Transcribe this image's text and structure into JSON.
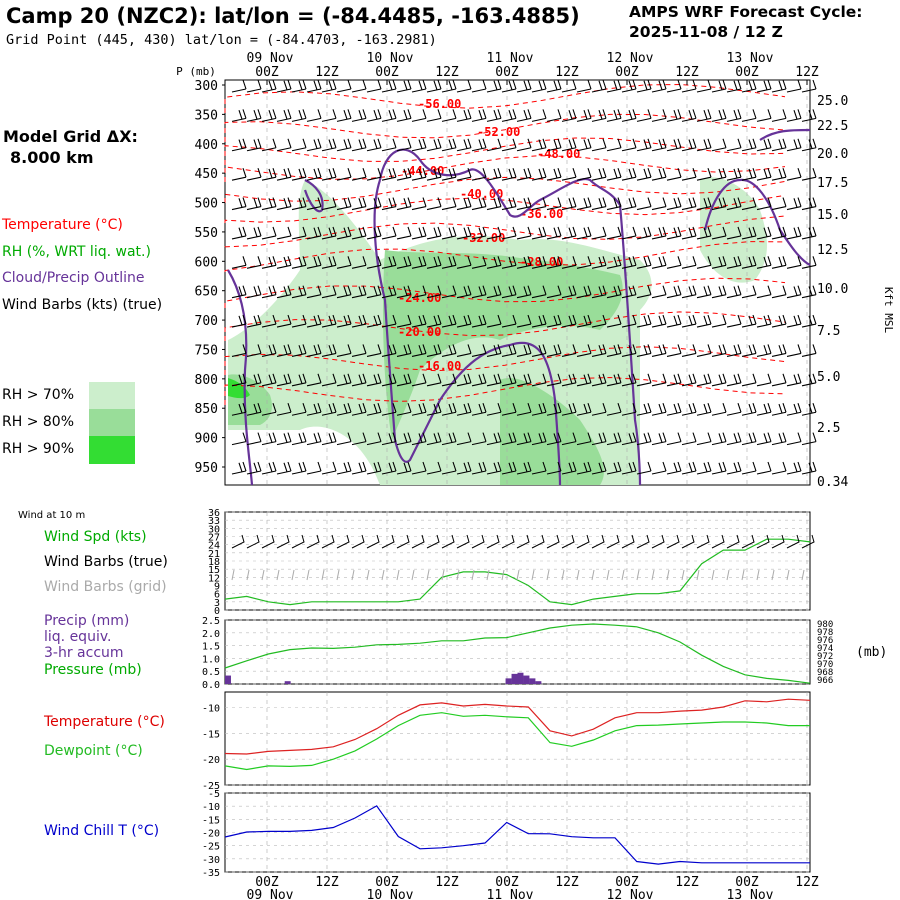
{
  "header": {
    "title": "Camp 20 (NZC2):  lat/lon = (-84.4485, -163.4885)",
    "subtitle": "Grid Point (445, 430) lat/lon = (-84.4703, -163.2981)",
    "model_line1": "AMPS WRF Forecast Cycle:",
    "model_line2": "2025-11-08 / 12  Z",
    "grid_label": "Model Grid ΔX:",
    "grid_value": "8.000 km"
  },
  "legend": {
    "temperature": "Temperature (°C)",
    "rh": "RH (%, WRT liq. wat.)",
    "cloud": "Cloud/Precip Outline",
    "wind": "Wind Barbs (kts) (true)",
    "rh70": "RH > 70%",
    "rh80": "RH > 80%",
    "rh90": "RH > 90%",
    "wind10": "Wind at 10 m",
    "wspd": "Wind Spd (kts)",
    "wbarbs_true": "Wind Barbs (true)",
    "wbarbs_grid": "Wind Barbs (grid)",
    "precip1": "Precip (mm)",
    "precip2": "liq. equiv.",
    "precip3": "3-hr accum",
    "pressure": "Pressure (mb)",
    "temp2": "Temperature (°C)",
    "dewpoint": "Dewpoint (°C)",
    "windchill": "Wind Chill T (°C)",
    "p_axis_label": "P (mb)",
    "kft_label": "Kft MSL",
    "mb_label": "(mb)"
  },
  "colors": {
    "temperature": "#ff0000",
    "green_line": "#00bb00",
    "cloud_outline": "#663399",
    "precip": "#663399",
    "dewpoint": "#22cc22",
    "windchill": "#0000cc",
    "rh70": "#cceecc",
    "rh80": "#99dd99",
    "rh90": "#33dd33"
  },
  "chart_data": [
    {
      "type": "heatmap",
      "title": "Vertical cross section (time-height)",
      "top_time_labels": [
        "00Z",
        "12Z",
        "00Z",
        "12Z",
        "00Z",
        "12Z",
        "00Z",
        "12Z",
        "00Z",
        "12Z"
      ],
      "top_date_labels": [
        "09 Nov",
        "10 Nov",
        "11 Nov",
        "12 Nov",
        "13 Nov"
      ],
      "pressure_ticks": [
        "300",
        "350",
        "400",
        "450",
        "500",
        "550",
        "600",
        "650",
        "700",
        "750",
        "800",
        "850",
        "900",
        "950"
      ],
      "height_ticks_kft": [
        "25.0",
        "22.5",
        "20.0",
        "17.5",
        "15.0",
        "12.5",
        "10.0",
        "7.5",
        "5.0",
        "2.5",
        "0.34"
      ],
      "temperature_labels": [
        "-56.00",
        "-52.00",
        "-48.00",
        "-44.00",
        "-40.00",
        "-36.00",
        "-32.00",
        "-28.00",
        "-24.00",
        "-20.00",
        "-16.00"
      ]
    },
    {
      "type": "line",
      "title": "Wind at 10 m",
      "series": [
        {
          "name": "Wind Spd (kts)",
          "values": [
            4,
            5,
            3,
            2,
            3,
            3,
            3,
            3,
            3,
            4,
            12,
            14,
            14,
            13,
            9,
            3,
            2,
            4,
            5,
            6,
            6,
            7,
            17,
            22,
            22,
            26,
            26,
            25
          ]
        }
      ],
      "yticks": [
        "36",
        "33",
        "30",
        "27",
        "24",
        "21",
        "18",
        "15",
        "12",
        "9",
        "6",
        "3",
        "0"
      ],
      "ylim": [
        0,
        36
      ]
    },
    {
      "type": "line",
      "title": "Precip / Pressure",
      "series": [
        {
          "name": "Pressure (mb)",
          "values": [
            969.0,
            970.8,
            972.5,
            973.6,
            974.0,
            973.9,
            974.2,
            974.8,
            974.9,
            975.2,
            975.8,
            975.8,
            976.5,
            976.6,
            977.8,
            979.0,
            979.7,
            980.0,
            979.7,
            979.3,
            977.8,
            975.5,
            972.2,
            969.4,
            967.3,
            966.4,
            965.9,
            965.2
          ]
        },
        {
          "name": "Precip (mm)",
          "values": [
            0.15,
            0.0,
            0.0,
            0.0,
            0.0,
            0.0,
            0.0,
            0.0,
            0.0,
            0.0,
            0.05,
            0.0,
            0.0,
            0.0,
            0.0,
            0.0,
            0.0,
            0.0,
            0.0,
            0.0,
            0.0,
            0.0,
            0.0,
            0.0,
            0.0,
            0.0,
            0.0,
            0.0,
            0.0,
            0.0,
            0.0,
            0.0,
            0.0,
            0.0,
            0.0,
            0.0,
            0.0,
            0.0,
            0.0,
            0.0,
            0.0,
            0.0,
            0.0,
            0.0,
            0.0,
            0.0,
            0.0,
            0.1,
            0.18,
            0.2,
            0.15,
            0.1,
            0.05,
            0.0,
            0.0,
            0.0,
            0.0,
            0.0,
            0.0,
            0.0,
            0.0,
            0.0,
            0.0,
            0.0,
            0.0,
            0.0,
            0.0,
            0.0,
            0.0,
            0.0,
            0.0,
            0.0,
            0.0,
            0.0,
            0.0,
            0.0,
            0.0,
            0.0,
            0.0,
            0.0,
            0.0,
            0.0,
            0.0,
            0.0,
            0.0,
            0.0,
            0.0,
            0.0,
            0.0,
            0.0,
            0.0,
            0.0,
            0.0,
            0.0,
            0.0,
            0.0,
            0.0,
            0.0
          ]
        }
      ],
      "yticks_left": [
        "2.5",
        "2.0",
        "1.5",
        "1.0",
        "0.5",
        "0.0"
      ],
      "yticks_right": [
        "980",
        "978",
        "976",
        "974",
        "972",
        "970",
        "968",
        "966"
      ],
      "precip_ylim": [
        0,
        2.5
      ],
      "pressure_ylim": [
        965,
        981
      ]
    },
    {
      "type": "line",
      "title": "Temperature / Dewpoint",
      "series": [
        {
          "name": "Temperature (°C)",
          "values": [
            -18.9,
            -19.0,
            -18.5,
            -18.3,
            -18.1,
            -17.6,
            -16.2,
            -14.1,
            -11.5,
            -9.5,
            -9.1,
            -9.7,
            -9.4,
            -9.7,
            -9.9,
            -14.5,
            -15.5,
            -14.2,
            -12.0,
            -11.0,
            -11.0,
            -10.7,
            -10.5,
            -9.9,
            -8.7,
            -8.9,
            -8.4,
            -8.6
          ]
        },
        {
          "name": "Dewpoint (°C)",
          "values": [
            -21.3,
            -22.0,
            -21.3,
            -21.4,
            -21.2,
            -20.0,
            -18.4,
            -16.1,
            -13.5,
            -11.5,
            -11.0,
            -11.7,
            -11.5,
            -11.8,
            -12.0,
            -16.8,
            -17.5,
            -16.3,
            -14.5,
            -13.5,
            -13.4,
            -13.2,
            -13.0,
            -12.8,
            -12.8,
            -13.0,
            -13.5,
            -13.5
          ]
        }
      ],
      "yticks": [
        "-10",
        "-15",
        "-20",
        "-25"
      ],
      "ylim": [
        -25,
        -7
      ]
    },
    {
      "type": "line",
      "title": "Wind Chill",
      "series": [
        {
          "name": "Wind Chill T (°C)",
          "values": [
            -21.7,
            -19.8,
            -19.6,
            -19.6,
            -19.2,
            -18.1,
            -14.5,
            -9.9,
            -21.5,
            -26.2,
            -25.8,
            -25.0,
            -24.0,
            -16.2,
            -20.4,
            -20.5,
            -21.6,
            -22.0,
            -22.0,
            -31.0,
            -32.0,
            -31.0,
            -31.5,
            -31.5,
            -31.5,
            -31.5,
            -31.5,
            -31.5
          ]
        }
      ],
      "yticks": [
        "-5",
        "-10",
        "-15",
        "-20",
        "-25",
        "-30",
        "-35"
      ],
      "ylim": [
        -35,
        -5
      ]
    }
  ],
  "bottom_axis": {
    "time_labels": [
      "00Z",
      "12Z",
      "00Z",
      "12Z",
      "00Z",
      "12Z",
      "00Z",
      "12Z",
      "00Z",
      "12Z"
    ],
    "date_labels": [
      "09 Nov",
      "10 Nov",
      "11 Nov",
      "12 Nov",
      "13 Nov"
    ]
  }
}
